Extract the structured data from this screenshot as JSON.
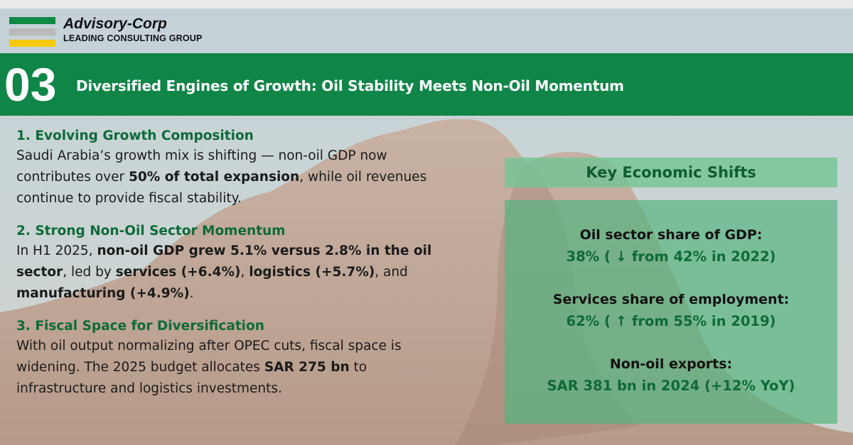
{
  "brand": {
    "name": "Advisory-Corp",
    "tagline": "LEADING CONSULTING GROUP",
    "colors": {
      "green": "#0f8a45",
      "gray": "#b9b9b9",
      "yellow": "#f6c90e"
    }
  },
  "header": {
    "number": "03",
    "title": "Diversified Engines of Growth: Oil Stability Meets Non-Oil Momentum",
    "color": "#0f8547"
  },
  "sections": [
    {
      "heading": "1. Evolving Growth Composition",
      "parts": [
        {
          "text": "Saudi Arabia’s growth mix is shifting — non-oil GDP now contributes over "
        },
        {
          "text": "50% of total expansion",
          "bold": true
        },
        {
          "text": ", while oil revenues continue to provide fiscal stability."
        }
      ]
    },
    {
      "heading": "2. Strong Non-Oil Sector Momentum",
      "parts": [
        {
          "text": "In H1 2025, "
        },
        {
          "text": "non-oil GDP grew 5.1% versus 2.8% in the oil sector",
          "bold": true
        },
        {
          "text": ", led by "
        },
        {
          "text": "services (+6.4%)",
          "bold": true
        },
        {
          "text": ", "
        },
        {
          "text": "logistics (+5.7%)",
          "bold": true
        },
        {
          "text": ", and "
        },
        {
          "text": "manufacturing (+4.9%)",
          "bold": true
        },
        {
          "text": "."
        }
      ]
    },
    {
      "heading": "3. Fiscal Space for Diversification",
      "parts": [
        {
          "text": "With oil output normalizing after OPEC cuts, fiscal space is widening. The 2025 budget allocates "
        },
        {
          "text": "SAR 275 bn",
          "bold": true
        },
        {
          "text": " to infrastructure and logistics investments."
        }
      ]
    }
  ],
  "key_shifts": {
    "title": "Key Economic Shifts",
    "metrics": [
      {
        "label": "Oil sector share of GDP:",
        "value": "38% ( ↓  from 42% in 2022)"
      },
      {
        "label": "Services share of employment:",
        "value": "62% ( ↑  from 55% in 2019)"
      },
      {
        "label": "Non-oil exports:",
        "value": "SAR 381 bn in 2024 (+12% YoY)"
      }
    ]
  }
}
